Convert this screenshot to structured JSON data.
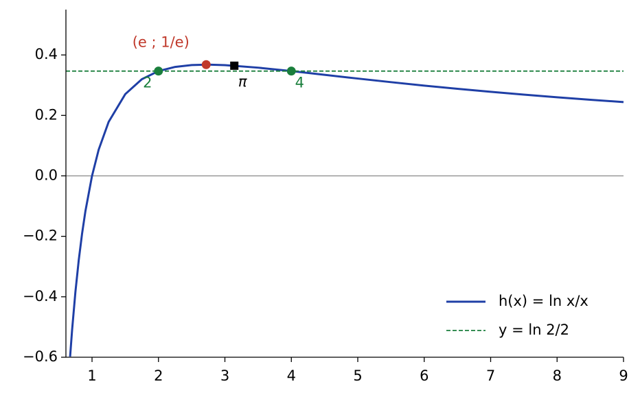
{
  "chart_data": {
    "type": "line",
    "xlim": [
      0.607,
      9
    ],
    "ylim": [
      -0.6,
      0.55
    ],
    "xticks": [
      1,
      2,
      3,
      4,
      5,
      6,
      7,
      8,
      9
    ],
    "yticks": [
      {
        "value": -0.6,
        "label": "−0.6"
      },
      {
        "value": -0.4,
        "label": "−0.4"
      },
      {
        "value": -0.2,
        "label": "−0.2"
      },
      {
        "value": 0,
        "label": "0.0"
      },
      0.2,
      0.4
    ],
    "legend": "lower right",
    "series": [
      {
        "name": "h(x) = ln x/x",
        "color": "#1f3fa6",
        "x": [
          0.67,
          0.7,
          0.75,
          0.8,
          0.85,
          0.9,
          1,
          1.1,
          1.25,
          1.5,
          1.75,
          2,
          2.25,
          2.5,
          2.75,
          3,
          3.5,
          4,
          4.5,
          5,
          5.5,
          6,
          6.5,
          7,
          7.5,
          8,
          8.5,
          9
        ],
        "values": [
          -0.598,
          -0.5095,
          -0.3836,
          -0.2789,
          -0.1912,
          -0.1171,
          0,
          0.0866,
          0.1785,
          0.2703,
          0.3198,
          0.3466,
          0.3604,
          0.3665,
          0.3679,
          0.3662,
          0.3579,
          0.3466,
          0.3342,
          0.3219,
          0.31,
          0.2986,
          0.288,
          0.278,
          0.2687,
          0.2599,
          0.2518,
          0.2441
        ]
      },
      {
        "name": "y = ln 2/2",
        "color": "#1a7f3c",
        "style": "dashed",
        "y": 0.3466
      }
    ],
    "points": [
      {
        "x": 2,
        "y": 0.3466,
        "color": "#1a7f3c",
        "marker": "circle",
        "label": "2"
      },
      {
        "x": 4,
        "y": 0.3466,
        "color": "#1a7f3c",
        "marker": "circle",
        "label": "4"
      },
      {
        "x": 2.7183,
        "y": 0.3679,
        "color": "#c0392b",
        "marker": "circle",
        "label": "(e ; 1/e)"
      },
      {
        "x": 3.1416,
        "y": 0.3644,
        "color": "#000000",
        "marker": "square",
        "label": "π"
      }
    ]
  }
}
